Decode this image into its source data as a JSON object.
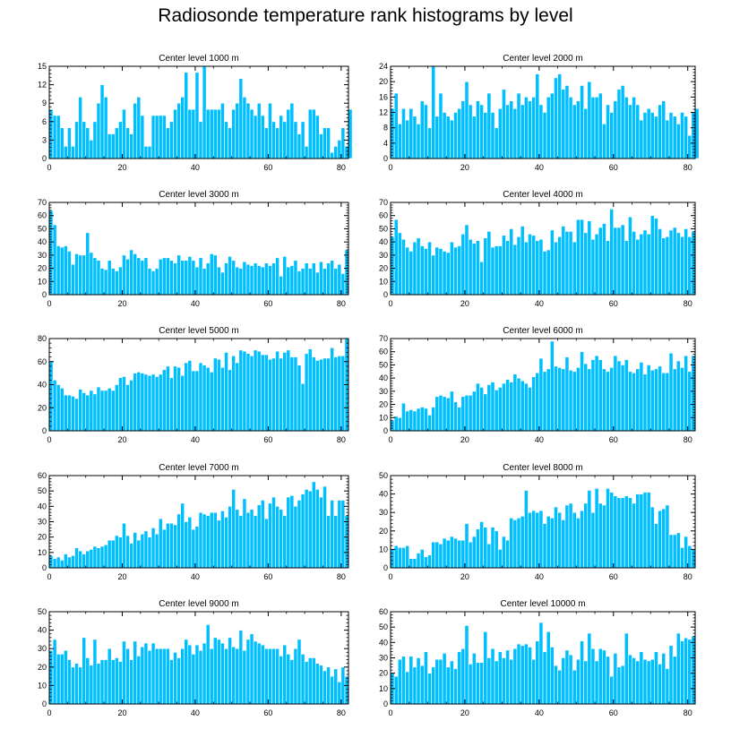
{
  "title": "Radiosonde temperature rank histograms by level",
  "colors": {
    "bar": "#00BFFF",
    "bar_edge": "#ffffff",
    "axis": "#000000"
  },
  "chart_data": [
    {
      "type": "bar",
      "title": "Center level 1000 m",
      "xlabel": "",
      "ylabel": "",
      "xlim": [
        0,
        82
      ],
      "ylim": [
        0,
        15
      ],
      "xticks": [
        0,
        20,
        40,
        60,
        80
      ],
      "yticks": [
        0,
        3,
        6,
        9,
        12,
        15
      ],
      "values": [
        8,
        7,
        7,
        5,
        2,
        5,
        2,
        6,
        10,
        6,
        5,
        3,
        6,
        9,
        12,
        10,
        4,
        4,
        5,
        6,
        8,
        5,
        4,
        9,
        10,
        7,
        2,
        2,
        7,
        7,
        7,
        7,
        5,
        6,
        8,
        9,
        10,
        14,
        8,
        8,
        14,
        6,
        15,
        8,
        8,
        8,
        8,
        9,
        6,
        5,
        8,
        9,
        13,
        10,
        9,
        8,
        7,
        9,
        7,
        5,
        9,
        6,
        5,
        7,
        6,
        8,
        9,
        6,
        4,
        6,
        2,
        8,
        8,
        7,
        4,
        5,
        5,
        1,
        2,
        3,
        5,
        2,
        8
      ]
    },
    {
      "type": "bar",
      "title": "Center level 2000 m",
      "xlabel": "",
      "ylabel": "",
      "xlim": [
        0,
        82
      ],
      "ylim": [
        0,
        24
      ],
      "xticks": [
        0,
        20,
        40,
        60,
        80
      ],
      "yticks": [
        0,
        4,
        8,
        12,
        16,
        20,
        24
      ],
      "values": [
        13,
        17,
        9,
        13,
        10,
        13,
        11,
        9,
        15,
        14,
        8,
        24,
        11,
        17,
        12,
        11,
        10,
        12,
        13,
        15,
        20,
        14,
        11,
        15,
        14,
        12,
        17,
        12,
        8,
        13,
        18,
        14,
        15,
        13,
        17,
        14,
        16,
        15,
        16,
        22,
        14,
        12,
        16,
        17,
        21,
        22,
        18,
        19,
        16,
        14,
        15,
        19,
        13,
        20,
        16,
        16,
        17,
        9,
        14,
        12,
        15,
        18,
        19,
        16,
        14,
        16,
        14,
        10,
        12,
        13,
        12,
        11,
        14,
        15,
        10,
        12,
        11,
        9,
        12,
        11,
        6,
        12,
        13
      ]
    },
    {
      "type": "bar",
      "title": "Center level 3000 m",
      "xlabel": "",
      "ylabel": "",
      "xlim": [
        0,
        82
      ],
      "ylim": [
        0,
        70
      ],
      "xticks": [
        0,
        20,
        40,
        60,
        80
      ],
      "yticks": [
        0,
        10,
        20,
        30,
        40,
        50,
        60,
        70
      ],
      "values": [
        64,
        53,
        37,
        36,
        37,
        33,
        23,
        31,
        30,
        30,
        47,
        32,
        28,
        26,
        20,
        19,
        26,
        20,
        18,
        21,
        30,
        27,
        34,
        31,
        28,
        26,
        28,
        20,
        18,
        20,
        27,
        28,
        28,
        26,
        24,
        30,
        26,
        26,
        29,
        26,
        21,
        28,
        20,
        24,
        31,
        30,
        21,
        17,
        24,
        29,
        26,
        21,
        20,
        25,
        23,
        22,
        24,
        22,
        21,
        24,
        22,
        24,
        28,
        14,
        29,
        21,
        22,
        26,
        18,
        20,
        24,
        20,
        24,
        17,
        25,
        20,
        24,
        26,
        20,
        23,
        16,
        34
      ]
    },
    {
      "type": "bar",
      "title": "Center level 4000 m",
      "xlabel": "",
      "ylabel": "",
      "xlim": [
        0,
        82
      ],
      "ylim": [
        0,
        70
      ],
      "xticks": [
        0,
        20,
        40,
        60,
        80
      ],
      "yticks": [
        0,
        10,
        20,
        30,
        40,
        50,
        60,
        70
      ],
      "values": [
        44,
        57,
        47,
        42,
        36,
        33,
        40,
        43,
        37,
        35,
        40,
        30,
        36,
        35,
        33,
        32,
        40,
        36,
        37,
        46,
        53,
        42,
        39,
        41,
        25,
        43,
        48,
        36,
        37,
        37,
        45,
        41,
        50,
        38,
        44,
        52,
        40,
        46,
        45,
        41,
        42,
        33,
        34,
        49,
        40,
        44,
        52,
        48,
        48,
        40,
        57,
        57,
        47,
        56,
        42,
        46,
        51,
        54,
        41,
        65,
        51,
        51,
        53,
        41,
        59,
        48,
        42,
        46,
        49,
        46,
        60,
        58,
        50,
        43,
        44,
        49,
        51,
        47,
        44,
        50,
        44,
        48
      ]
    },
    {
      "type": "bar",
      "title": "Center level 5000 m",
      "xlabel": "",
      "ylabel": "",
      "xlim": [
        0,
        82
      ],
      "ylim": [
        0,
        80
      ],
      "xticks": [
        0,
        20,
        40,
        60,
        80
      ],
      "yticks": [
        0,
        20,
        40,
        60,
        80
      ],
      "values": [
        60,
        44,
        40,
        37,
        31,
        31,
        30,
        28,
        36,
        33,
        31,
        35,
        32,
        38,
        35,
        35,
        37,
        35,
        40,
        46,
        47,
        40,
        44,
        50,
        51,
        50,
        49,
        48,
        49,
        47,
        49,
        53,
        56,
        46,
        56,
        55,
        48,
        59,
        61,
        52,
        52,
        59,
        57,
        55,
        51,
        63,
        62,
        55,
        68,
        53,
        65,
        59,
        70,
        69,
        67,
        65,
        70,
        69,
        66,
        66,
        62,
        63,
        69,
        63,
        68,
        70,
        64,
        64,
        57,
        41,
        67,
        71,
        64,
        61,
        62,
        63,
        63,
        72,
        64,
        65,
        65,
        80
      ]
    },
    {
      "type": "bar",
      "title": "Center level 6000 m",
      "xlabel": "",
      "ylabel": "",
      "xlim": [
        0,
        82
      ],
      "ylim": [
        0,
        70
      ],
      "xticks": [
        0,
        20,
        40,
        60,
        80
      ],
      "yticks": [
        0,
        10,
        20,
        30,
        40,
        50,
        60,
        70
      ],
      "values": [
        8,
        11,
        10,
        21,
        15,
        16,
        15,
        17,
        18,
        17,
        12,
        18,
        26,
        27,
        26,
        25,
        30,
        22,
        18,
        26,
        27,
        27,
        30,
        36,
        33,
        28,
        35,
        37,
        31,
        33,
        36,
        39,
        37,
        43,
        40,
        38,
        36,
        33,
        41,
        44,
        55,
        45,
        47,
        68,
        49,
        48,
        47,
        56,
        46,
        45,
        48,
        60,
        51,
        47,
        54,
        57,
        54,
        47,
        45,
        48,
        57,
        53,
        50,
        54,
        45,
        44,
        47,
        52,
        43,
        50,
        46,
        47,
        49,
        44,
        44,
        59,
        47,
        53,
        48,
        57,
        45,
        57
      ]
    },
    {
      "type": "bar",
      "title": "Center level 7000 m",
      "xlabel": "",
      "ylabel": "",
      "xlim": [
        0,
        82
      ],
      "ylim": [
        0,
        60
      ],
      "xticks": [
        0,
        20,
        40,
        60,
        80
      ],
      "yticks": [
        0,
        10,
        20,
        30,
        40,
        50,
        60
      ],
      "values": [
        8,
        6,
        7,
        5,
        9,
        7,
        8,
        13,
        11,
        9,
        11,
        12,
        14,
        13,
        14,
        15,
        18,
        18,
        21,
        20,
        29,
        21,
        16,
        23,
        18,
        22,
        24,
        20,
        26,
        22,
        32,
        25,
        29,
        29,
        28,
        35,
        42,
        30,
        33,
        25,
        27,
        36,
        35,
        34,
        36,
        36,
        31,
        37,
        33,
        40,
        51,
        38,
        34,
        45,
        36,
        38,
        34,
        41,
        44,
        32,
        42,
        46,
        40,
        38,
        34,
        46,
        47,
        40,
        44,
        48,
        51,
        50,
        56,
        51,
        46,
        53,
        34,
        44,
        34,
        44,
        44,
        34
      ]
    },
    {
      "type": "bar",
      "title": "Center level 8000 m",
      "xlabel": "",
      "ylabel": "",
      "xlim": [
        0,
        82
      ],
      "ylim": [
        0,
        50
      ],
      "xticks": [
        0,
        20,
        40,
        60,
        80
      ],
      "yticks": [
        0,
        10,
        20,
        30,
        40,
        50
      ],
      "values": [
        10,
        12,
        11,
        11,
        12,
        5,
        5,
        8,
        10,
        6,
        7,
        14,
        14,
        13,
        16,
        15,
        17,
        16,
        15,
        15,
        24,
        14,
        17,
        21,
        25,
        22,
        13,
        22,
        20,
        10,
        17,
        15,
        27,
        26,
        27,
        28,
        42,
        30,
        31,
        30,
        31,
        24,
        28,
        27,
        33,
        30,
        26,
        34,
        35,
        30,
        27,
        31,
        35,
        42,
        30,
        43,
        35,
        34,
        43,
        41,
        39,
        38,
        38,
        39,
        38,
        35,
        40,
        40,
        41,
        41,
        33,
        24,
        31,
        32,
        34,
        18,
        18,
        19,
        11,
        17,
        12,
        10
      ]
    },
    {
      "type": "bar",
      "title": "Center level 9000 m",
      "xlabel": "",
      "ylabel": "",
      "xlim": [
        0,
        82
      ],
      "ylim": [
        0,
        50
      ],
      "xticks": [
        0,
        20,
        40,
        60,
        80
      ],
      "yticks": [
        0,
        10,
        20,
        30,
        40,
        50
      ],
      "values": [
        29,
        35,
        27,
        27,
        29,
        24,
        20,
        22,
        20,
        36,
        25,
        21,
        35,
        22,
        24,
        24,
        30,
        24,
        25,
        23,
        34,
        30,
        24,
        34,
        26,
        31,
        33,
        29,
        33,
        30,
        30,
        30,
        30,
        24,
        28,
        25,
        30,
        35,
        32,
        27,
        32,
        29,
        33,
        43,
        30,
        36,
        35,
        33,
        30,
        36,
        31,
        30,
        40,
        29,
        35,
        38,
        34,
        33,
        32,
        30,
        30,
        30,
        30,
        26,
        32,
        27,
        24,
        30,
        35,
        27,
        23,
        25,
        25,
        22,
        21,
        18,
        20,
        15,
        19,
        12,
        20,
        15
      ]
    },
    {
      "type": "bar",
      "title": "Center level 10000 m",
      "xlabel": "",
      "ylabel": "",
      "xlim": [
        0,
        82
      ],
      "ylim": [
        0,
        60
      ],
      "xticks": [
        0,
        20,
        40,
        60,
        80
      ],
      "yticks": [
        0,
        10,
        20,
        30,
        40,
        50,
        60
      ],
      "values": [
        20,
        18,
        29,
        31,
        21,
        31,
        24,
        30,
        25,
        34,
        20,
        24,
        29,
        29,
        33,
        24,
        28,
        23,
        34,
        36,
        51,
        26,
        33,
        27,
        27,
        47,
        30,
        36,
        28,
        34,
        30,
        35,
        29,
        36,
        39,
        38,
        39,
        37,
        29,
        41,
        53,
        34,
        47,
        37,
        25,
        22,
        30,
        35,
        32,
        22,
        29,
        41,
        28,
        46,
        36,
        28,
        36,
        35,
        31,
        18,
        33,
        24,
        25,
        46,
        32,
        30,
        28,
        34,
        29,
        28,
        29,
        34,
        26,
        33,
        23,
        38,
        31,
        46,
        41,
        43,
        42,
        44
      ]
    }
  ]
}
